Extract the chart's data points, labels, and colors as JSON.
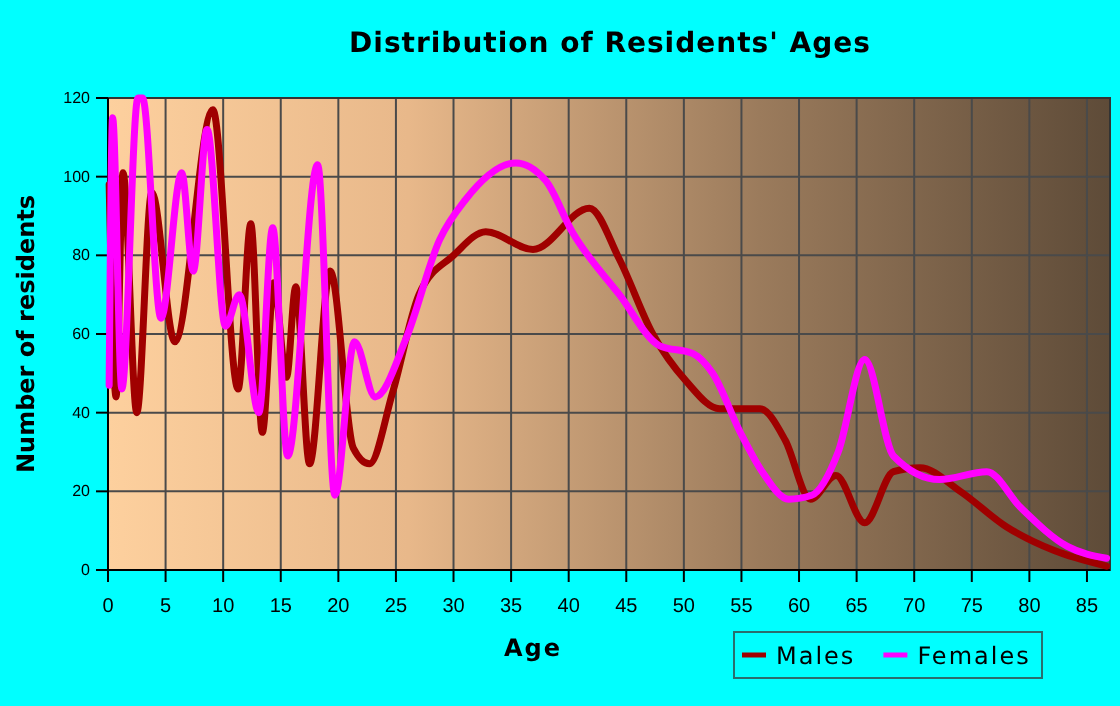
{
  "chart_data": {
    "type": "line",
    "title": "Distribution of Residents' Ages",
    "xlabel": "Age",
    "ylabel": "Number of residents",
    "xlim": [
      0,
      87
    ],
    "xticks": [
      0,
      5,
      10,
      15,
      20,
      25,
      30,
      35,
      40,
      45,
      50,
      55,
      60,
      65,
      70,
      75,
      80,
      85
    ],
    "ylim": [
      0,
      120
    ],
    "yticks": [
      0,
      20,
      40,
      60,
      80,
      100,
      120
    ],
    "grid": true,
    "legend": "bottom right",
    "line_style": "solid",
    "marker": "none",
    "series": [
      {
        "name": "Males",
        "color": "#a00000",
        "x": [
          0.1,
          0.7,
          1.3,
          2.5,
          3.8,
          5.8,
          9.1,
          11.3,
          12.4,
          13.4,
          14.4,
          15.5,
          16.3,
          17.5,
          19.3,
          21.3,
          22.7,
          24.7,
          27,
          30,
          32.8,
          36.9,
          41.8,
          44.4,
          47.3,
          50.2,
          53.1,
          56.6,
          58.8,
          61,
          63.2,
          65.7,
          68.2,
          70.5,
          74,
          78,
          82.1,
          86.7
        ],
        "values": [
          98,
          44,
          101,
          40,
          96,
          58,
          117,
          46,
          88,
          35,
          73,
          49,
          72,
          27,
          76,
          31,
          27,
          45,
          70,
          80,
          86,
          81.5,
          92,
          79,
          60,
          48,
          41,
          41,
          33,
          18,
          24,
          12,
          25,
          26,
          20,
          11,
          5,
          1
        ]
      },
      {
        "name": "Females",
        "color": "#ff00ff",
        "x": [
          0.1,
          0.4,
          1.2,
          2.6,
          3,
          4.6,
          6.4,
          7.4,
          8.6,
          10.2,
          11.4,
          13.1,
          14.3,
          15.6,
          18.2,
          19.7,
          21.4,
          23.2,
          25.9,
          28.8,
          31,
          35.4,
          38,
          40.3,
          44.4,
          47.9,
          50.8,
          52.5,
          54.9,
          56.8,
          59.1,
          61.1,
          63.4,
          65.7,
          68.2,
          72.2,
          76.3,
          79.2,
          83.3,
          86.7
        ],
        "values": [
          47,
          115,
          46,
          120,
          120,
          64,
          101,
          76,
          112,
          62,
          70,
          40,
          87,
          29,
          103,
          19,
          58,
          44,
          59,
          84,
          94,
          103.5,
          99,
          86,
          70,
          57,
          55,
          50,
          35,
          25,
          18,
          19,
          30,
          53.5,
          29,
          23,
          25,
          16,
          6,
          3
        ]
      }
    ]
  }
}
